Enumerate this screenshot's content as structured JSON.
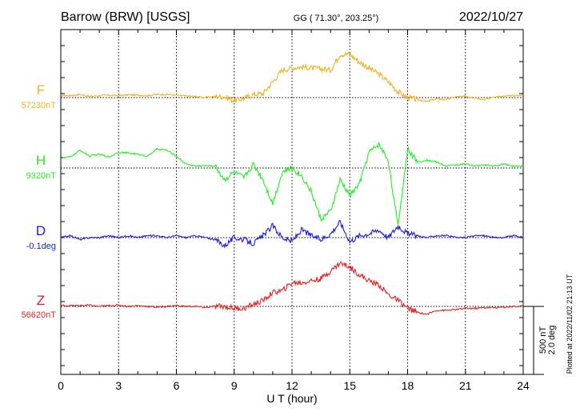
{
  "header": {
    "station": "Barrow (BRW)  [USGS]",
    "coords": "GG ( 71.30°, 203.25°)",
    "date": "2022/10/27"
  },
  "footer": {
    "plotted": "Plotted at 2022/11/02 21:13 UT"
  },
  "chart_data": {
    "type": "line",
    "title": "",
    "xlabel": "U T (hour)",
    "ylabel": "",
    "xlim": [
      0,
      24
    ],
    "x_ticks": [
      "0",
      "3",
      "6",
      "9",
      "12",
      "15",
      "18",
      "21",
      "24"
    ],
    "grid": true,
    "scale_bar": {
      "line1": "500 nT",
      "line2": "2.0 deg"
    },
    "series": [
      {
        "name": "F",
        "baseline_label": "57230nT",
        "color": "#f0b020",
        "x": [
          0,
          0.5,
          1,
          1.5,
          2,
          2.5,
          3,
          3.5,
          4,
          4.5,
          5,
          5.5,
          6,
          6.5,
          7,
          7.5,
          8,
          8.5,
          9,
          9.5,
          10,
          10.5,
          11,
          11.5,
          12,
          12.5,
          13,
          13.5,
          14,
          14.5,
          15,
          15.5,
          16,
          16.5,
          17,
          17.5,
          18,
          18.5,
          19,
          19.5,
          20,
          20.5,
          21,
          21.5,
          22,
          22.5,
          23,
          23.5,
          24
        ],
        "y": [
          5,
          5,
          8,
          3,
          5,
          6,
          5,
          7,
          6,
          5,
          8,
          8,
          6,
          4,
          3,
          0,
          3,
          2,
          -8,
          -2,
          8,
          10,
          40,
          70,
          75,
          78,
          75,
          73,
          70,
          110,
          110,
          90,
          75,
          60,
          40,
          15,
          0,
          -5,
          -10,
          -3,
          -5,
          2,
          3,
          0,
          -5,
          2,
          3,
          5,
          6
        ]
      },
      {
        "name": "H",
        "baseline_label": "9320nT",
        "color": "#22ee22",
        "x": [
          0,
          0.5,
          1,
          1.5,
          2,
          2.5,
          3,
          3.5,
          4,
          4.5,
          5,
          5.5,
          6,
          6.5,
          7,
          7.5,
          8,
          8.5,
          9,
          9.5,
          10,
          10.5,
          11,
          11.5,
          12,
          12.5,
          13,
          13.5,
          14,
          14.5,
          15,
          15.5,
          16,
          16.5,
          17,
          17.5,
          18,
          18.5,
          19,
          19.5,
          20,
          20.5,
          21,
          21.5,
          22,
          22.5,
          23,
          23.5,
          24
        ],
        "y": [
          25,
          28,
          45,
          30,
          35,
          28,
          40,
          38,
          35,
          30,
          48,
          45,
          30,
          10,
          5,
          6,
          5,
          -30,
          -10,
          -25,
          10,
          -30,
          -90,
          -10,
          0,
          -20,
          -60,
          -130,
          -110,
          -30,
          -70,
          -40,
          40,
          60,
          20,
          -150,
          50,
          15,
          20,
          15,
          5,
          8,
          10,
          5,
          8,
          5,
          10,
          5,
          5
        ]
      },
      {
        "name": "D",
        "baseline_label": "-0.1deg",
        "color": "#1a1adf",
        "x": [
          0,
          0.5,
          1,
          1.5,
          2,
          2.5,
          3,
          3.5,
          4,
          4.5,
          5,
          5.5,
          6,
          6.5,
          7,
          7.5,
          8,
          8.5,
          9,
          9.5,
          10,
          10.5,
          11,
          11.5,
          12,
          12.5,
          13,
          13.5,
          14,
          14.5,
          15,
          15.5,
          16,
          16.5,
          17,
          17.5,
          18,
          18.5,
          19,
          19.5,
          20,
          20.5,
          21,
          21.5,
          22,
          22.5,
          23,
          23.5,
          24
        ],
        "y": [
          0,
          5,
          -5,
          0,
          0,
          5,
          0,
          5,
          0,
          5,
          5,
          0,
          5,
          0,
          5,
          0,
          -5,
          -20,
          0,
          -5,
          -15,
          5,
          30,
          0,
          -10,
          20,
          5,
          -5,
          10,
          40,
          -10,
          5,
          10,
          20,
          0,
          30,
          10,
          5,
          0,
          5,
          5,
          0,
          0,
          5,
          5,
          0,
          0,
          5,
          0
        ]
      },
      {
        "name": "Z",
        "baseline_label": "56620nT",
        "color": "#e02020",
        "x": [
          0,
          0.5,
          1,
          1.5,
          2,
          2.5,
          3,
          3.5,
          4,
          4.5,
          5,
          5.5,
          6,
          6.5,
          7,
          7.5,
          8,
          8.5,
          9,
          9.5,
          10,
          10.5,
          11,
          11.5,
          12,
          12.5,
          13,
          13.5,
          14,
          14.5,
          15,
          15.5,
          16,
          16.5,
          17,
          17.5,
          18,
          18.5,
          19,
          19.5,
          20,
          20.5,
          21,
          21.5,
          22,
          22.5,
          23,
          23.5,
          24
        ],
        "y": [
          2,
          2,
          2,
          3,
          0,
          2,
          3,
          0,
          2,
          0,
          -2,
          0,
          2,
          0,
          0,
          -3,
          0,
          0,
          -5,
          -5,
          5,
          15,
          35,
          40,
          60,
          60,
          65,
          70,
          90,
          110,
          100,
          80,
          65,
          55,
          30,
          15,
          -5,
          -15,
          -20,
          -10,
          -10,
          -8,
          -5,
          -5,
          -3,
          -3,
          -2,
          0,
          0
        ]
      }
    ]
  }
}
